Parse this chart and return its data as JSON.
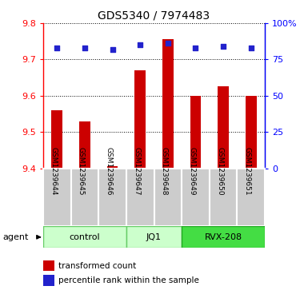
{
  "title": "GDS5340 / 7974483",
  "samples": [
    "GSM1239644",
    "GSM1239645",
    "GSM1239646",
    "GSM1239647",
    "GSM1239648",
    "GSM1239649",
    "GSM1239650",
    "GSM1239651"
  ],
  "bar_values": [
    9.56,
    9.53,
    9.405,
    9.67,
    9.755,
    9.6,
    9.625,
    9.6
  ],
  "percentile_values": [
    83,
    83,
    82,
    85,
    86,
    83,
    84,
    83
  ],
  "ylim_left": [
    9.4,
    9.8
  ],
  "ylim_right": [
    0,
    100
  ],
  "yticks_left": [
    9.4,
    9.5,
    9.6,
    9.7,
    9.8
  ],
  "yticks_right": [
    0,
    25,
    50,
    75,
    100
  ],
  "ytick_right_labels": [
    "0",
    "25",
    "50",
    "75",
    "100%"
  ],
  "groups": [
    {
      "label": "control",
      "indices": [
        0,
        1,
        2
      ],
      "color": "#ccffcc",
      "edge": "#66cc66"
    },
    {
      "label": "JQ1",
      "indices": [
        3,
        4
      ],
      "color": "#ccffcc",
      "edge": "#66cc66"
    },
    {
      "label": "RVX-208",
      "indices": [
        5,
        6,
        7
      ],
      "color": "#44dd44",
      "edge": "#22aa22"
    }
  ],
  "bar_color": "#cc0000",
  "dot_color": "#2222cc",
  "dot_size": 20,
  "bar_width": 0.4,
  "agent_label": "agent",
  "legend_bar_label": "transformed count",
  "legend_dot_label": "percentile rank within the sample",
  "sample_box_color": "#cccccc",
  "sample_box_edge": "#ffffff",
  "plot_bg": "#ffffff",
  "fig_bg": "#ffffff"
}
